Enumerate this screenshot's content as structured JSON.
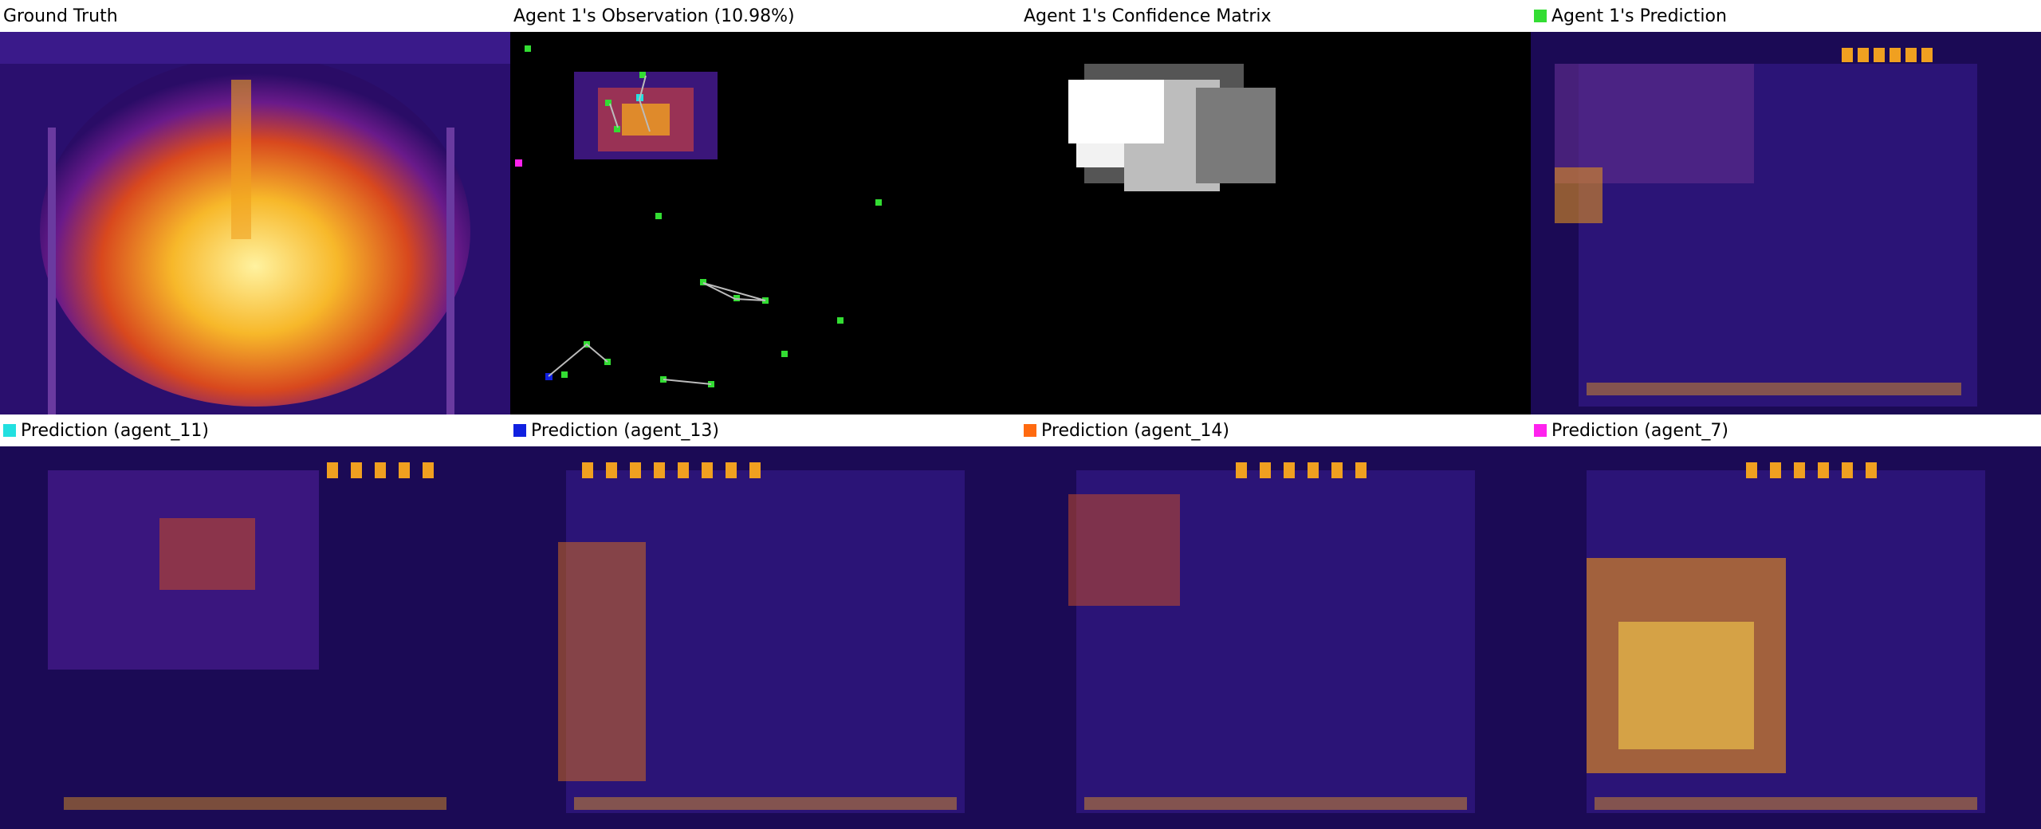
{
  "panels": [
    {
      "id": "ground-truth",
      "title": "Ground Truth",
      "swatch": null,
      "kind": "ground_truth"
    },
    {
      "id": "observation",
      "title": "Agent 1's Observation (10.98%)",
      "swatch": null,
      "kind": "observation"
    },
    {
      "id": "confidence",
      "title": "Agent 1's Confidence Matrix",
      "swatch": null,
      "kind": "confidence"
    },
    {
      "id": "agent1-prediction",
      "title": "Agent 1's Prediction",
      "swatch": "#33dd33",
      "kind": "prediction"
    },
    {
      "id": "agent11-prediction",
      "title": "Prediction (agent_11)",
      "swatch": "#22e0e0",
      "kind": "prediction"
    },
    {
      "id": "agent13-prediction",
      "title": "Prediction (agent_13)",
      "swatch": "#1020e0",
      "kind": "prediction"
    },
    {
      "id": "agent14-prediction",
      "title": "Prediction (agent_14)",
      "swatch": "#ff6a10",
      "kind": "prediction"
    },
    {
      "id": "agent7-prediction",
      "title": "Prediction (agent_7)",
      "swatch": "#ff22ee",
      "kind": "prediction"
    }
  ],
  "colors": {
    "background_dark": "#1b0a55",
    "hot": "#f0a020",
    "hot_core": "#ffee80",
    "observation_bg": "#000000",
    "agent_green": "#33dd33",
    "agent_cyan": "#22e0e0",
    "agent_blue": "#1020e0",
    "agent_magenta": "#ff22ee"
  }
}
